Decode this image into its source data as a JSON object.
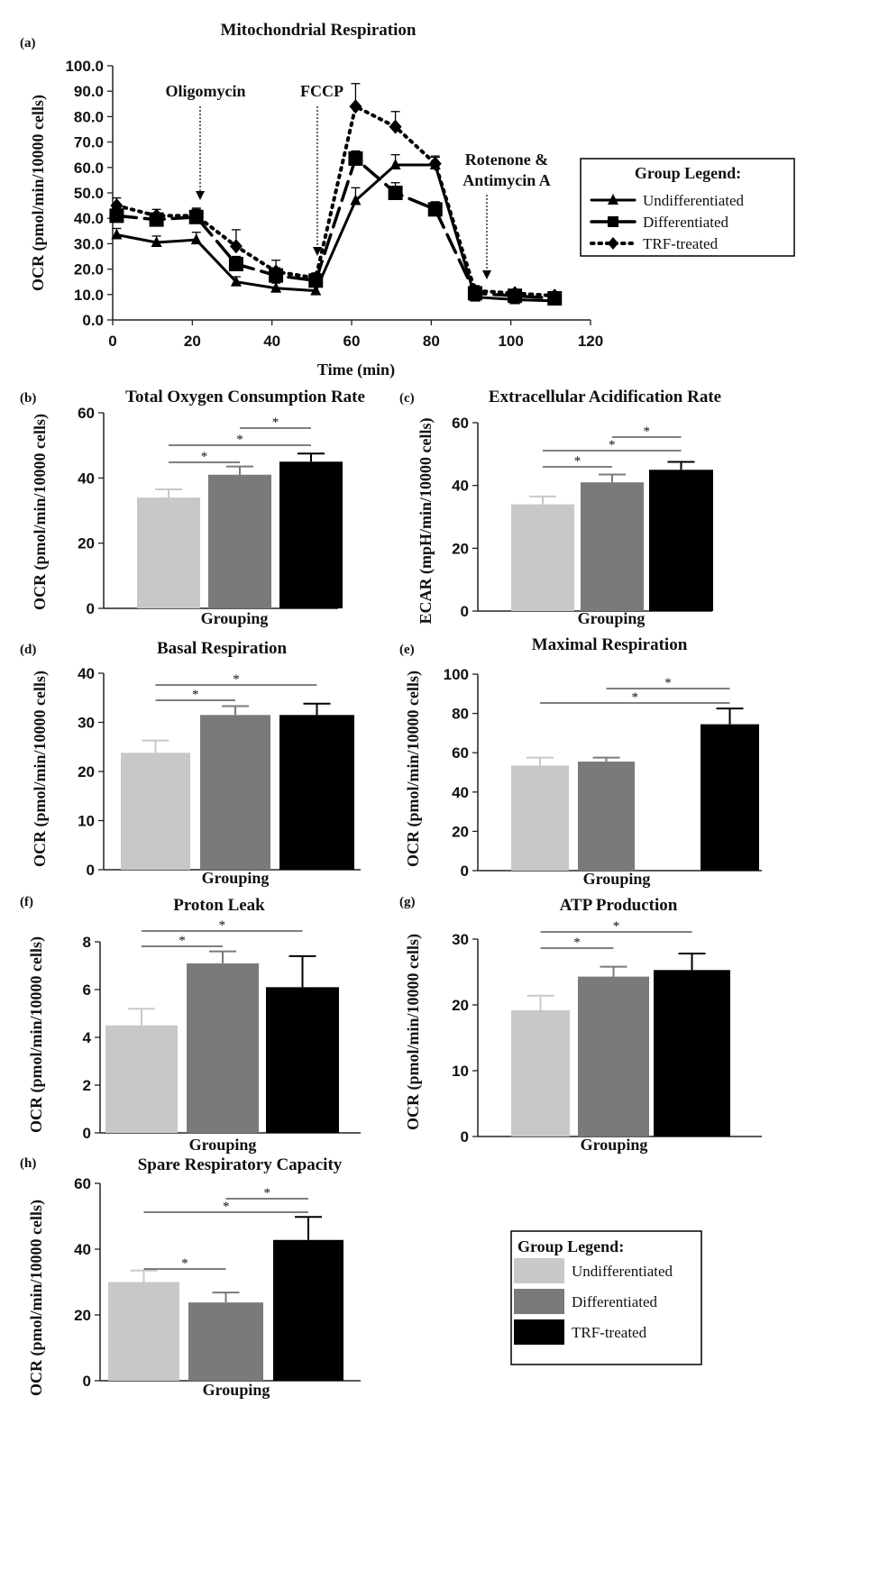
{
  "colors": {
    "Undifferentiated": "#c8c8c8",
    "Differentiated": "#7a7a7a",
    "TRF-treated": "#000000"
  },
  "line_legend": {
    "title": "Group Legend:",
    "items": [
      "Undifferentiated",
      "Differentiated",
      "TRF-treated"
    ]
  },
  "bar_legend": {
    "title": "Group Legend:",
    "items": [
      "Undifferentiated",
      "Differentiated",
      "TRF-treated"
    ]
  },
  "chart_data": [
    {
      "id": "a",
      "panel_label": "(a)",
      "type": "line",
      "title": "Mitochondrial Respiration",
      "xlabel": "Time (min)",
      "ylabel": "OCR (pmol/min/10000 cells)",
      "xlim": [
        0,
        120
      ],
      "ylim": [
        0,
        100
      ],
      "xticks": [
        0,
        20,
        40,
        60,
        80,
        100,
        120
      ],
      "yticks": [
        "0.0",
        "10.0",
        "20.0",
        "30.0",
        "40.0",
        "50.0",
        "60.0",
        "70.0",
        "80.0",
        "90.0",
        "100.0"
      ],
      "x": [
        1,
        11,
        21,
        31,
        41,
        51,
        61,
        71,
        81,
        91,
        101,
        111
      ],
      "series": [
        {
          "name": "Undifferentiated",
          "values": [
            33.5,
            30.5,
            31.5,
            15,
            12.5,
            11.5,
            47,
            61,
            61,
            9,
            8,
            7.5
          ],
          "errors": [
            2.5,
            2.5,
            3,
            2,
            2,
            1.5,
            5,
            4,
            3,
            2,
            1.5,
            1.5
          ]
        },
        {
          "name": "Differentiated",
          "values": [
            41,
            39.5,
            40.5,
            22,
            17.5,
            15.5,
            63.5,
            50,
            43.5,
            10.5,
            9.5,
            8.5
          ],
          "errors": [
            3,
            2.5,
            3,
            3,
            3,
            2,
            3,
            4,
            3,
            2,
            1.5,
            1.5
          ]
        },
        {
          "name": "TRF-treated",
          "values": [
            45,
            41,
            41,
            29,
            19,
            16.5,
            84,
            76,
            61.5,
            11.5,
            10.5,
            9.5
          ],
          "errors": [
            3,
            2.5,
            3,
            6.5,
            4.5,
            2,
            9,
            6,
            3,
            2,
            1.5,
            1.5
          ]
        }
      ],
      "annotations": [
        {
          "label": "Oligomycin",
          "x": 21
        },
        {
          "label": "FCCP",
          "x": 50
        },
        {
          "label": "Rotenone &",
          "label2": "Antimycin A",
          "x": 91
        }
      ]
    },
    {
      "id": "b",
      "panel_label": "(b)",
      "type": "bar",
      "title": "Total Oxygen Consumption Rate",
      "xlabel": "Grouping",
      "ylabel": "OCR (pmol/min/10000 cells)",
      "ylim": [
        0,
        60
      ],
      "yticks": [
        "0",
        "20",
        "40",
        "60"
      ],
      "categories": [
        "Undifferentiated",
        "Differentiated",
        "TRF-treated"
      ],
      "values": [
        34,
        41,
        45
      ],
      "errors": [
        2.5,
        2.5,
        2.5
      ],
      "significance": [
        {
          "between": [
            0,
            1
          ],
          "label": "*"
        },
        {
          "between": [
            0,
            2
          ],
          "label": "*"
        },
        {
          "between": [
            1,
            2
          ],
          "label": "*"
        }
      ]
    },
    {
      "id": "c",
      "panel_label": "(c)",
      "type": "bar",
      "title": "Extracellular Acidification Rate",
      "xlabel": "Grouping",
      "ylabel": "ECAR (mpH/min/10000 cells)",
      "ylim": [
        0,
        60
      ],
      "yticks": [
        "0",
        "20",
        "40",
        "60"
      ],
      "categories": [
        "Undifferentiated",
        "Differentiated",
        "TRF-treated"
      ],
      "values": [
        34,
        41,
        45
      ],
      "errors": [
        2.5,
        2.5,
        2.5
      ],
      "significance": [
        {
          "between": [
            0,
            1
          ],
          "label": "*"
        },
        {
          "between": [
            0,
            2
          ],
          "label": "*"
        },
        {
          "between": [
            1,
            2
          ],
          "label": "*"
        }
      ]
    },
    {
      "id": "d",
      "panel_label": "(d)",
      "type": "bar",
      "title": "Basal Respiration",
      "xlabel": "Grouping",
      "ylabel": "OCR (pmol/min/10000 cells)",
      "ylim": [
        0,
        40
      ],
      "yticks": [
        "0",
        "10",
        "20",
        "30",
        "40"
      ],
      "categories": [
        "Undifferentiated",
        "Differentiated",
        "TRF-treated"
      ],
      "values": [
        23.8,
        31.5,
        31.5
      ],
      "errors": [
        2.5,
        1.8,
        2.3
      ],
      "significance": [
        {
          "between": [
            0,
            1
          ],
          "label": "*"
        },
        {
          "between": [
            0,
            2
          ],
          "label": "*"
        }
      ]
    },
    {
      "id": "e",
      "panel_label": "(e)",
      "type": "bar",
      "title": "Maximal Respiration",
      "xlabel": "Grouping",
      "ylabel": "OCR (pmol/min/10000 cells)",
      "ylim": [
        0,
        100
      ],
      "yticks": [
        "0",
        "20",
        "40",
        "60",
        "80",
        "100"
      ],
      "categories": [
        "Undifferentiated",
        "Differentiated",
        "TRF-treated"
      ],
      "values": [
        53.5,
        55.5,
        74.5
      ],
      "errors": [
        4,
        2,
        8
      ],
      "significance": [
        {
          "between": [
            0,
            2
          ],
          "label": "*"
        },
        {
          "between": [
            1,
            2
          ],
          "label": "*"
        }
      ]
    },
    {
      "id": "f",
      "panel_label": "(f)",
      "type": "bar",
      "title": "Proton Leak",
      "xlabel": "Grouping",
      "ylabel": "OCR (pmol/min/10000 cells)",
      "ylim": [
        0,
        8
      ],
      "yticks": [
        "0",
        "2",
        "4",
        "6",
        "8"
      ],
      "categories": [
        "Undifferentiated",
        "Differentiated",
        "TRF-treated"
      ],
      "values": [
        4.5,
        7.1,
        6.1
      ],
      "errors": [
        0.7,
        0.5,
        1.3
      ],
      "significance": [
        {
          "between": [
            0,
            1
          ],
          "label": "*"
        },
        {
          "between": [
            0,
            2
          ],
          "label": "*"
        }
      ]
    },
    {
      "id": "g",
      "panel_label": "(g)",
      "type": "bar",
      "title": "ATP Production",
      "xlabel": "Grouping",
      "ylabel": "OCR (pmol/min/10000 cells)",
      "ylim": [
        0,
        30
      ],
      "yticks": [
        "0",
        "10",
        "20",
        "30"
      ],
      "categories": [
        "Undifferentiated",
        "Differentiated",
        "TRF-treated"
      ],
      "values": [
        19.2,
        24.3,
        25.3
      ],
      "errors": [
        2.2,
        1.5,
        2.5
      ],
      "significance": [
        {
          "between": [
            0,
            1
          ],
          "label": "*"
        },
        {
          "between": [
            0,
            2
          ],
          "label": "*"
        }
      ]
    },
    {
      "id": "h",
      "panel_label": "(h)",
      "type": "bar",
      "title": "Spare Respiratory Capacity",
      "xlabel": "Grouping",
      "ylabel": "OCR (pmol/min/10000 cells)",
      "ylim": [
        0,
        60
      ],
      "yticks": [
        "0",
        "20",
        "40",
        "60"
      ],
      "categories": [
        "Undifferentiated",
        "Differentiated",
        "TRF-treated"
      ],
      "values": [
        30,
        23.8,
        42.8
      ],
      "errors": [
        3.5,
        3,
        7
      ],
      "significance": [
        {
          "between": [
            0,
            1
          ],
          "label": "*"
        },
        {
          "between": [
            0,
            2
          ],
          "label": "*"
        },
        {
          "between": [
            1,
            2
          ],
          "label": "*"
        }
      ]
    }
  ]
}
